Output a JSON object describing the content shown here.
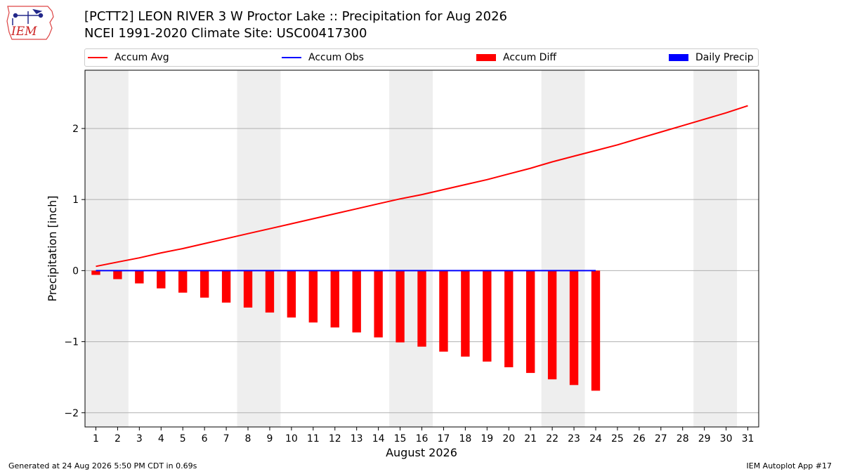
{
  "header": {
    "logo_text": "IEM",
    "title_line1": "[PCTT2] LEON RIVER 3 W Proctor Lake :: Precipitation for Aug 2026",
    "title_line2": "NCEI 1991-2020 Climate Site: USC00417300"
  },
  "legend": {
    "items": [
      {
        "label": "Accum Avg",
        "color": "#ff0000",
        "kind": "line"
      },
      {
        "label": "Accum Obs",
        "color": "#0000ff",
        "kind": "line"
      },
      {
        "label": "Accum Diff",
        "color": "#ff0000",
        "kind": "bar"
      },
      {
        "label": "Daily Precip",
        "color": "#0000ff",
        "kind": "bar"
      }
    ]
  },
  "chart_data": {
    "type": "bar",
    "xlabel": "August 2026",
    "ylabel": "Precipitation [inch]",
    "xlim": [
      0.5,
      31.5
    ],
    "ylim": [
      -2.2,
      2.82
    ],
    "yticks": [
      -2,
      -1,
      0,
      1,
      2
    ],
    "ytick_labels": [
      "−2",
      "−1",
      "0",
      "1",
      "2"
    ],
    "x": [
      1,
      2,
      3,
      4,
      5,
      6,
      7,
      8,
      9,
      10,
      11,
      12,
      13,
      14,
      15,
      16,
      17,
      18,
      19,
      20,
      21,
      22,
      23,
      24,
      25,
      26,
      27,
      28,
      29,
      30,
      31
    ],
    "grid": "horizontal",
    "weekend_shading": [
      [
        0.5,
        2.5
      ],
      [
        7.5,
        9.5
      ],
      [
        14.5,
        16.5
      ],
      [
        21.5,
        23.5
      ],
      [
        28.5,
        30.5
      ]
    ],
    "series": [
      {
        "name": "Accum Avg",
        "type": "line",
        "color": "#ff0000",
        "x": [
          1,
          2,
          3,
          4,
          5,
          6,
          7,
          8,
          9,
          10,
          11,
          12,
          13,
          14,
          15,
          16,
          17,
          18,
          19,
          20,
          21,
          22,
          23,
          24,
          25,
          26,
          27,
          28,
          29,
          30,
          31
        ],
        "values": [
          0.06,
          0.12,
          0.18,
          0.25,
          0.31,
          0.38,
          0.45,
          0.52,
          0.59,
          0.66,
          0.73,
          0.8,
          0.87,
          0.94,
          1.01,
          1.07,
          1.14,
          1.21,
          1.28,
          1.36,
          1.44,
          1.53,
          1.61,
          1.69,
          1.77,
          1.86,
          1.95,
          2.04,
          2.13,
          2.22,
          2.32
        ]
      },
      {
        "name": "Accum Obs",
        "type": "line",
        "color": "#0000ff",
        "x": [
          1,
          2,
          3,
          4,
          5,
          6,
          7,
          8,
          9,
          10,
          11,
          12,
          13,
          14,
          15,
          16,
          17,
          18,
          19,
          20,
          21,
          22,
          23,
          24
        ],
        "values": [
          0,
          0,
          0,
          0,
          0,
          0,
          0,
          0,
          0,
          0,
          0,
          0,
          0,
          0,
          0,
          0,
          0,
          0,
          0,
          0,
          0,
          0,
          0,
          0
        ]
      },
      {
        "name": "Accum Diff",
        "type": "bar",
        "color": "#ff0000",
        "x": [
          1,
          2,
          3,
          4,
          5,
          6,
          7,
          8,
          9,
          10,
          11,
          12,
          13,
          14,
          15,
          16,
          17,
          18,
          19,
          20,
          21,
          22,
          23,
          24
        ],
        "values": [
          -0.06,
          -0.12,
          -0.18,
          -0.25,
          -0.31,
          -0.38,
          -0.45,
          -0.52,
          -0.59,
          -0.66,
          -0.73,
          -0.8,
          -0.87,
          -0.94,
          -1.01,
          -1.07,
          -1.14,
          -1.21,
          -1.28,
          -1.36,
          -1.44,
          -1.53,
          -1.61,
          -1.69
        ]
      },
      {
        "name": "Daily Precip",
        "type": "bar",
        "color": "#0000ff",
        "x": [
          1,
          2,
          3,
          4,
          5,
          6,
          7,
          8,
          9,
          10,
          11,
          12,
          13,
          14,
          15,
          16,
          17,
          18,
          19,
          20,
          21,
          22,
          23,
          24
        ],
        "values": [
          0,
          0,
          0,
          0,
          0,
          0,
          0,
          0,
          0,
          0,
          0,
          0,
          0,
          0,
          0,
          0,
          0,
          0,
          0,
          0,
          0,
          0,
          0,
          0
        ]
      }
    ]
  },
  "footer": {
    "generated": "Generated at 24 Aug 2026 5:50 PM CDT in 0.69s",
    "app": "IEM Autoplot App #17"
  }
}
